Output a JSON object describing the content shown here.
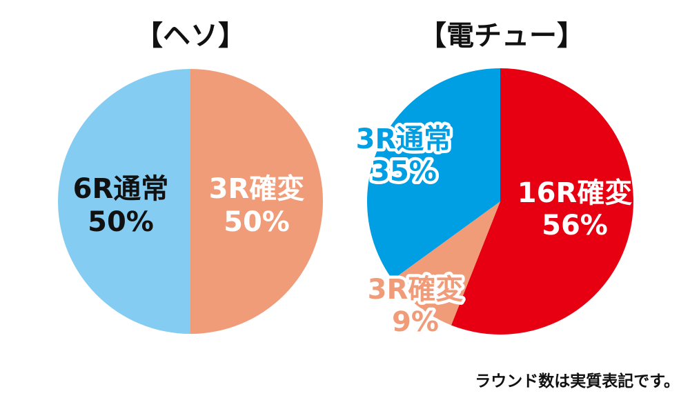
{
  "chart_data": [
    {
      "type": "pie",
      "title": "【ヘソ】",
      "slices": [
        {
          "name": "3R確変",
          "value": 50,
          "label": "50%",
          "color": "#F19C79",
          "text_color": "#FFFFFF",
          "outlined": false
        },
        {
          "name": "6R通常",
          "value": 50,
          "label": "50%",
          "color": "#84CCF1",
          "text_color": "#111111",
          "outlined": false
        }
      ]
    },
    {
      "type": "pie",
      "title": "【電チュー】",
      "slices": [
        {
          "name": "16R確変",
          "value": 56,
          "label": "56%",
          "color": "#E60012",
          "text_color": "#FFFFFF",
          "outlined": false
        },
        {
          "name": "3R確変",
          "value": 9,
          "label": "9%",
          "color": "#F19C79",
          "text_color": "#F19C79",
          "outlined": true
        },
        {
          "name": "3R通常",
          "value": 35,
          "label": "35%",
          "color": "#009FE3",
          "text_color": "#009FE3",
          "outlined": true
        }
      ]
    }
  ],
  "footnote": "ラウンド数は実質表記です。"
}
